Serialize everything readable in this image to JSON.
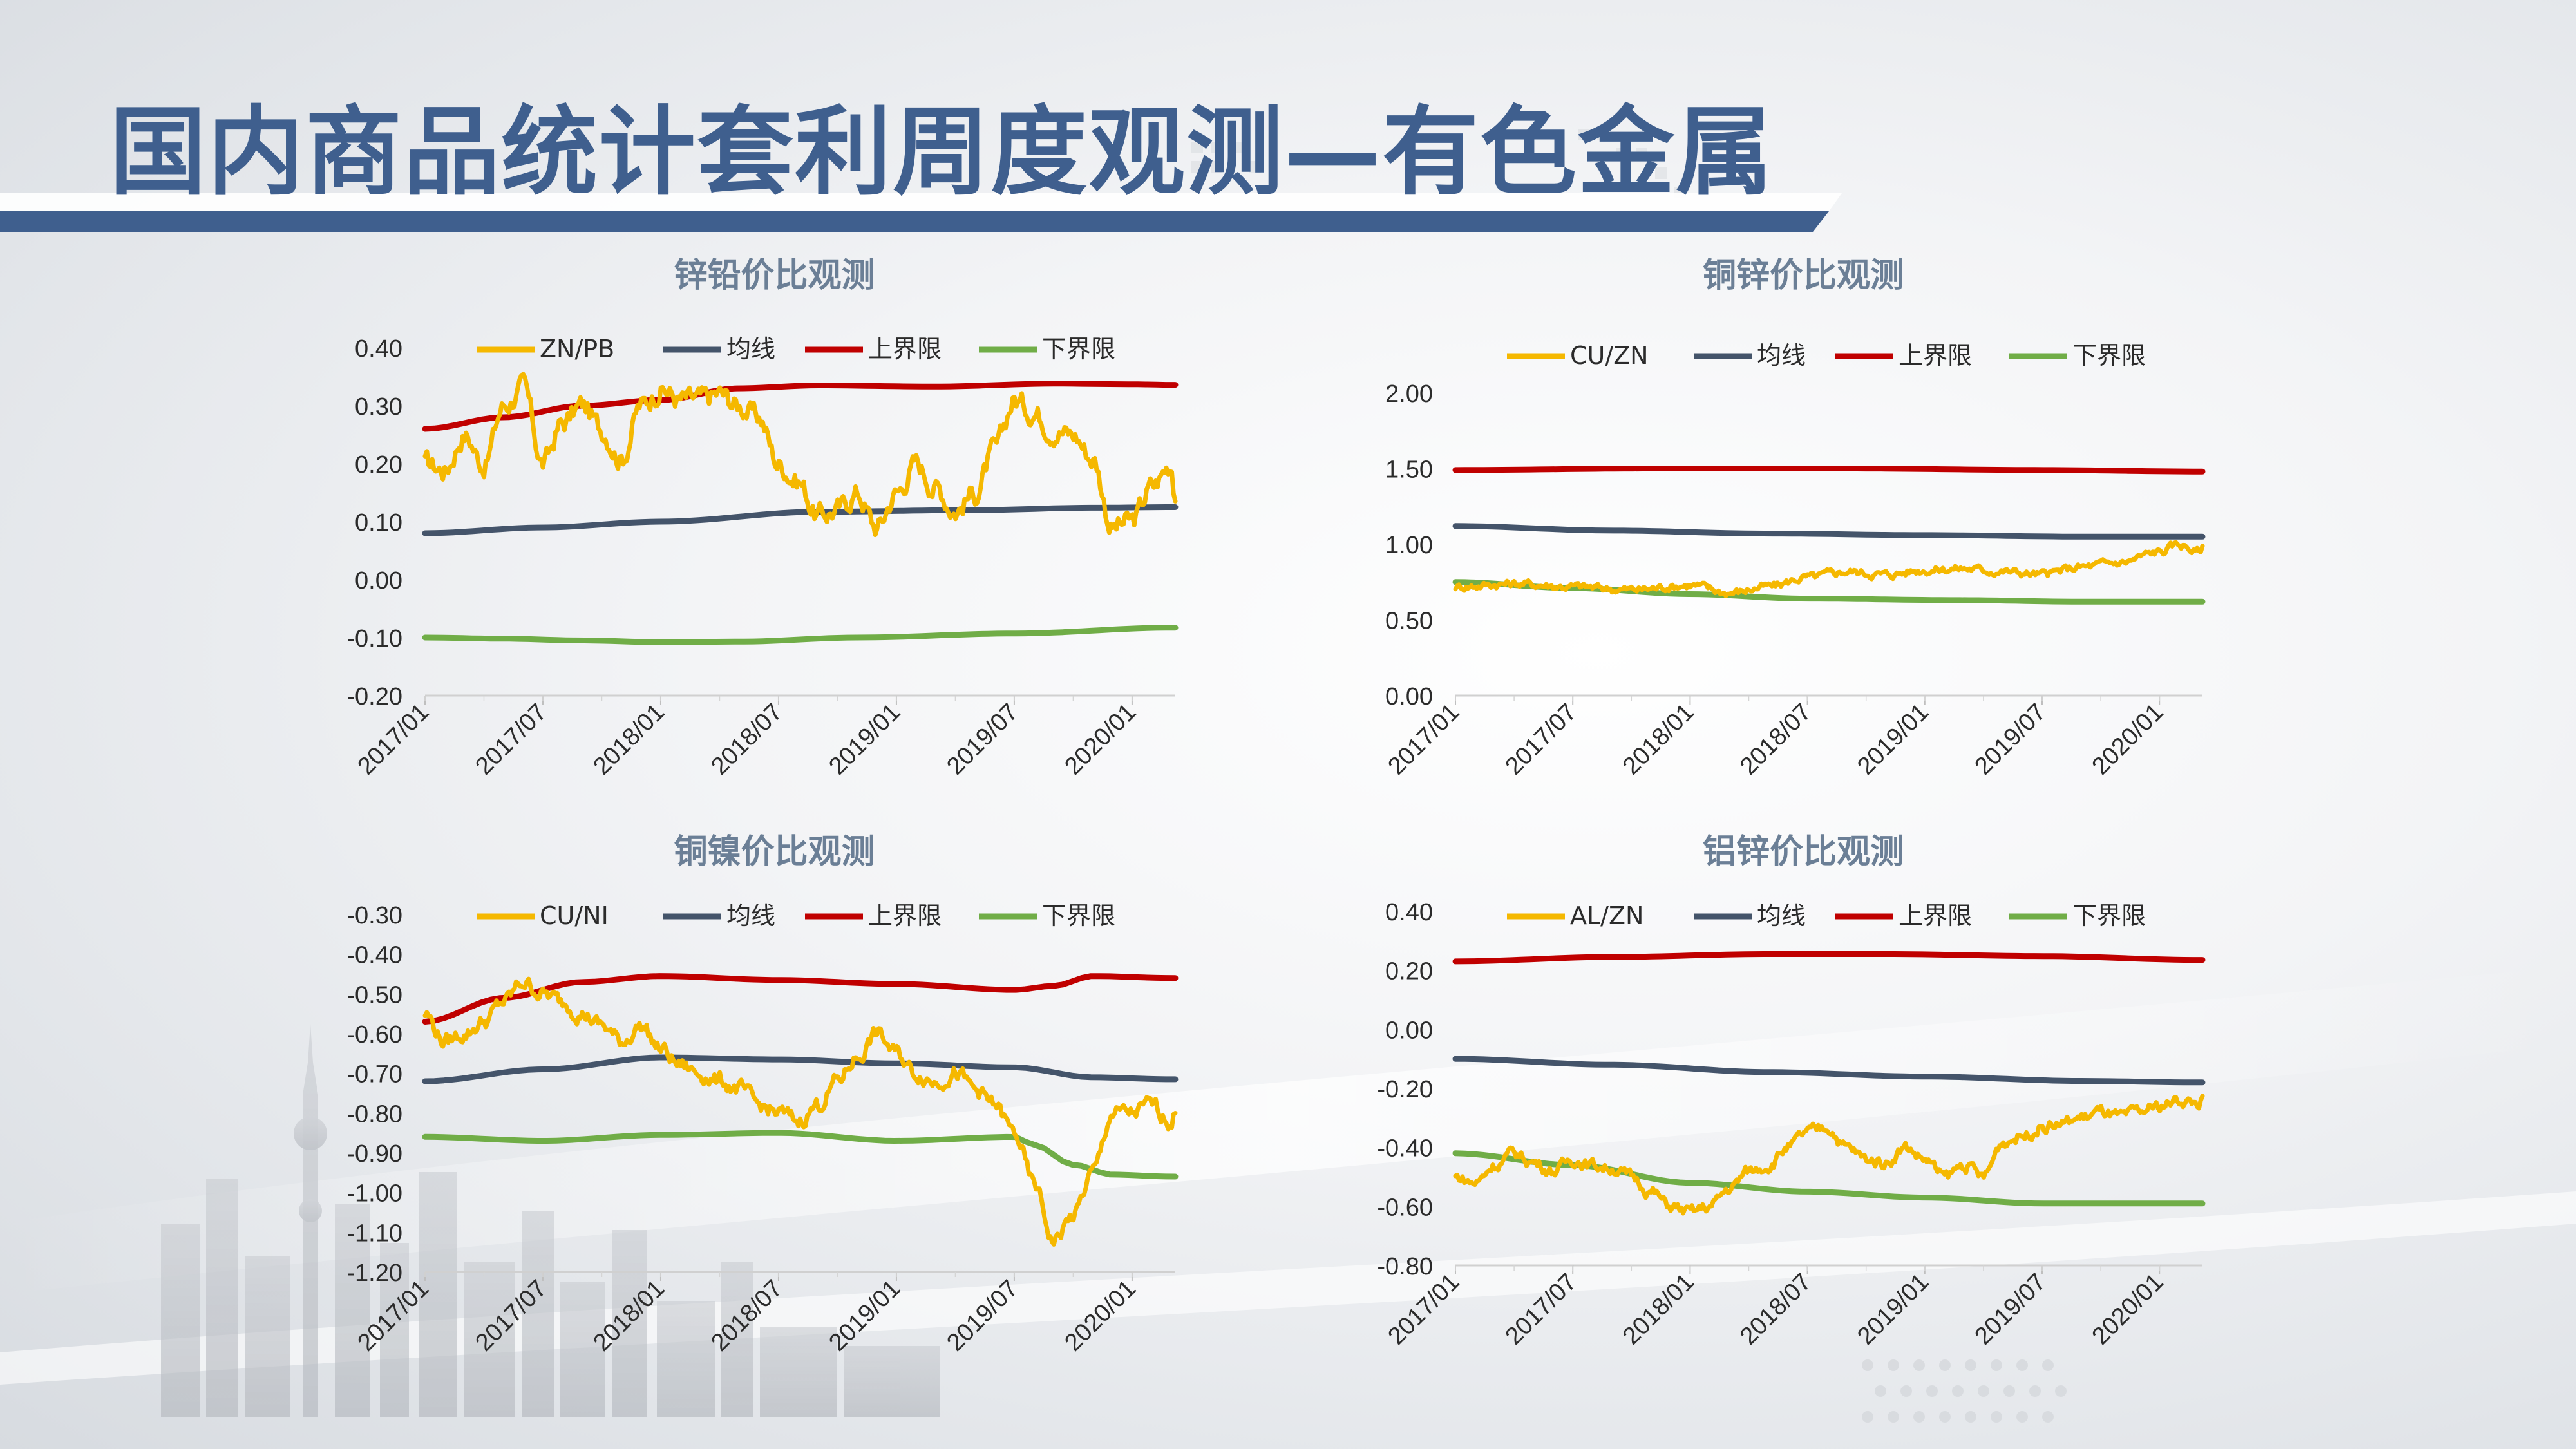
{
  "page": {
    "title": "国内商品统计套利周度观测—有色金属"
  },
  "colors": {
    "title": "#3f5f8e",
    "title_bar": "#3f5f8e",
    "ratio": "#f5b800",
    "mean": "#44546a",
    "upper": "#c00000",
    "lower": "#70ad47"
  },
  "chart_data": [
    {
      "id": "zn-pb",
      "type": "line",
      "title": "锌铅价比观测",
      "x_ticks": [
        "2017/01",
        "2017/07",
        "2018/01",
        "2018/07",
        "2019/01",
        "2019/07",
        "2020/01"
      ],
      "x_range": [
        0,
        38.2
      ],
      "y_ticks": [
        "0.40",
        "0.30",
        "0.20",
        "0.10",
        "0.00",
        "-0.10",
        "-0.20"
      ],
      "ylim": [
        -0.2,
        0.4
      ],
      "grid": false,
      "legend_position": "top",
      "series": [
        {
          "name": "ZN/PB",
          "color_key": "ratio",
          "knots": [
            [
              0,
              0.2
            ],
            [
              1,
              0.19
            ],
            [
              2,
              0.25
            ],
            [
              3,
              0.2
            ],
            [
              4,
              0.3
            ],
            [
              5,
              0.33
            ],
            [
              6,
              0.2
            ],
            [
              7,
              0.27
            ],
            [
              8,
              0.3
            ],
            [
              9,
              0.26
            ],
            [
              10,
              0.21
            ],
            [
              11,
              0.3
            ],
            [
              12,
              0.33
            ],
            [
              13,
              0.31
            ],
            [
              14,
              0.31
            ],
            [
              15,
              0.32
            ],
            [
              16,
              0.3
            ],
            [
              17,
              0.28
            ],
            [
              18,
              0.2
            ],
            [
              19,
              0.17
            ],
            [
              20,
              0.11
            ],
            [
              21,
              0.12
            ],
            [
              22,
              0.15
            ],
            [
              23,
              0.09
            ],
            [
              24,
              0.15
            ],
            [
              25,
              0.2
            ],
            [
              26,
              0.16
            ],
            [
              27,
              0.12
            ],
            [
              28,
              0.15
            ],
            [
              29,
              0.22
            ],
            [
              30,
              0.31
            ],
            [
              31,
              0.29
            ],
            [
              32,
              0.26
            ],
            [
              33,
              0.25
            ],
            [
              34,
              0.21
            ],
            [
              35,
              0.09
            ],
            [
              36,
              0.1
            ],
            [
              37,
              0.16
            ],
            [
              38,
              0.2
            ],
            [
              38.2,
              0.15
            ]
          ],
          "noise": 0.015
        },
        {
          "name": "均线",
          "color_key": "mean",
          "knots": [
            [
              0,
              0.08
            ],
            [
              6,
              0.09
            ],
            [
              12,
              0.1
            ],
            [
              20,
              0.117
            ],
            [
              28,
              0.12
            ],
            [
              34,
              0.124
            ],
            [
              38,
              0.125
            ]
          ],
          "noise": 0
        },
        {
          "name": "上界限",
          "color_key": "upper",
          "knots": [
            [
              0,
              0.26
            ],
            [
              4,
              0.28
            ],
            [
              8,
              0.3
            ],
            [
              12,
              0.31
            ],
            [
              16,
              0.33
            ],
            [
              20,
              0.335
            ],
            [
              26,
              0.333
            ],
            [
              32,
              0.338
            ],
            [
              36,
              0.337
            ],
            [
              38,
              0.336
            ]
          ],
          "noise": 0
        },
        {
          "name": "下界限",
          "color_key": "lower",
          "knots": [
            [
              0,
              -0.1
            ],
            [
              4,
              -0.102
            ],
            [
              8,
              -0.105
            ],
            [
              12,
              -0.108
            ],
            [
              16,
              -0.107
            ],
            [
              22,
              -0.1
            ],
            [
              30,
              -0.093
            ],
            [
              38,
              -0.083
            ]
          ],
          "noise": 0
        }
      ]
    },
    {
      "id": "cu-zn",
      "type": "line",
      "title": "铜锌价比观测",
      "x_ticks": [
        "2017/01",
        "2017/07",
        "2018/01",
        "2018/07",
        "2019/01",
        "2019/07",
        "2020/01"
      ],
      "x_range": [
        0,
        38.2
      ],
      "y_ticks": [
        "2.00",
        "1.50",
        "1.00",
        "0.50",
        "0.00"
      ],
      "ylim": [
        0,
        2.0
      ],
      "grid": false,
      "legend_position": "top",
      "series": [
        {
          "name": "CU/ZN",
          "color_key": "ratio",
          "knots": [
            [
              0,
              0.72
            ],
            [
              3,
              0.74
            ],
            [
              6,
              0.72
            ],
            [
              9,
              0.7
            ],
            [
              12,
              0.73
            ],
            [
              14,
              0.68
            ],
            [
              16,
              0.72
            ],
            [
              18,
              0.78
            ],
            [
              20,
              0.82
            ],
            [
              22,
              0.8
            ],
            [
              24,
              0.83
            ],
            [
              26,
              0.84
            ],
            [
              28,
              0.82
            ],
            [
              30,
              0.8
            ],
            [
              32,
              0.85
            ],
            [
              34,
              0.88
            ],
            [
              36,
              0.95
            ],
            [
              37,
              1.0
            ],
            [
              38,
              0.95
            ],
            [
              38.2,
              0.98
            ]
          ],
          "noise": 0.02
        },
        {
          "name": "均线",
          "color_key": "mean",
          "knots": [
            [
              0,
              1.12
            ],
            [
              8,
              1.09
            ],
            [
              16,
              1.07
            ],
            [
              24,
              1.06
            ],
            [
              32,
              1.05
            ],
            [
              38,
              1.05
            ]
          ],
          "noise": 0
        },
        {
          "name": "上界限",
          "color_key": "upper",
          "knots": [
            [
              0,
              1.49
            ],
            [
              10,
              1.5
            ],
            [
              20,
              1.5
            ],
            [
              30,
              1.49
            ],
            [
              38,
              1.48
            ]
          ],
          "noise": 0
        },
        {
          "name": "下界限",
          "color_key": "lower",
          "knots": [
            [
              0,
              0.75
            ],
            [
              6,
              0.71
            ],
            [
              12,
              0.67
            ],
            [
              18,
              0.64
            ],
            [
              26,
              0.63
            ],
            [
              32,
              0.62
            ],
            [
              38,
              0.62
            ]
          ],
          "noise": 0
        }
      ]
    },
    {
      "id": "cu-ni",
      "type": "line",
      "title": "铜镍价比观测",
      "x_ticks": [
        "2017/01",
        "2017/07",
        "2018/01",
        "2018/07",
        "2019/01",
        "2019/07",
        "2020/01"
      ],
      "x_range": [
        0,
        38.2
      ],
      "y_ticks": [
        "-0.30",
        "-0.40",
        "-0.50",
        "-0.60",
        "-0.70",
        "-0.80",
        "-0.90",
        "-1.00",
        "-1.10",
        "-1.20"
      ],
      "ylim": [
        -1.2,
        -0.3
      ],
      "grid": false,
      "legend_position": "top",
      "series": [
        {
          "name": "CU/NI",
          "color_key": "ratio",
          "knots": [
            [
              0,
              -0.55
            ],
            [
              1,
              -0.62
            ],
            [
              2,
              -0.6
            ],
            [
              3,
              -0.57
            ],
            [
              4,
              -0.52
            ],
            [
              5,
              -0.47
            ],
            [
              6,
              -0.5
            ],
            [
              7,
              -0.52
            ],
            [
              8,
              -0.55
            ],
            [
              9,
              -0.58
            ],
            [
              10,
              -0.62
            ],
            [
              11,
              -0.58
            ],
            [
              12,
              -0.64
            ],
            [
              13,
              -0.68
            ],
            [
              14,
              -0.7
            ],
            [
              15,
              -0.72
            ],
            [
              16,
              -0.74
            ],
            [
              17,
              -0.78
            ],
            [
              18,
              -0.8
            ],
            [
              19,
              -0.82
            ],
            [
              20,
              -0.78
            ],
            [
              21,
              -0.72
            ],
            [
              22,
              -0.66
            ],
            [
              23,
              -0.6
            ],
            [
              24,
              -0.65
            ],
            [
              25,
              -0.7
            ],
            [
              26,
              -0.72
            ],
            [
              27,
              -0.7
            ],
            [
              28,
              -0.74
            ],
            [
              29,
              -0.78
            ],
            [
              30,
              -0.85
            ],
            [
              31,
              -0.98
            ],
            [
              32,
              -1.12
            ],
            [
              33,
              -1.06
            ],
            [
              34,
              -0.95
            ],
            [
              35,
              -0.8
            ],
            [
              36,
              -0.8
            ],
            [
              37,
              -0.78
            ],
            [
              38,
              -0.82
            ],
            [
              38.2,
              -0.8
            ]
          ],
          "noise": 0.015
        },
        {
          "name": "均线",
          "color_key": "mean",
          "knots": [
            [
              0,
              -0.72
            ],
            [
              6,
              -0.69
            ],
            [
              12,
              -0.66
            ],
            [
              18,
              -0.665
            ],
            [
              24,
              -0.675
            ],
            [
              30,
              -0.685
            ],
            [
              34,
              -0.71
            ],
            [
              38,
              -0.715
            ]
          ],
          "noise": 0
        },
        {
          "name": "上界限",
          "color_key": "upper",
          "knots": [
            [
              0,
              -0.57
            ],
            [
              4,
              -0.51
            ],
            [
              8,
              -0.47
            ],
            [
              12,
              -0.455
            ],
            [
              18,
              -0.465
            ],
            [
              24,
              -0.475
            ],
            [
              30,
              -0.49
            ],
            [
              32,
              -0.48
            ],
            [
              34,
              -0.455
            ],
            [
              38,
              -0.46
            ]
          ],
          "noise": 0
        },
        {
          "name": "下界限",
          "color_key": "lower",
          "knots": [
            [
              0,
              -0.86
            ],
            [
              6,
              -0.87
            ],
            [
              12,
              -0.855
            ],
            [
              18,
              -0.85
            ],
            [
              24,
              -0.87
            ],
            [
              30,
              -0.86
            ],
            [
              31,
              -0.88
            ],
            [
              33,
              -0.93
            ],
            [
              35,
              -0.955
            ],
            [
              38,
              -0.96
            ]
          ],
          "noise": 0
        }
      ]
    },
    {
      "id": "al-zn",
      "type": "line",
      "title": "铝锌价比观测",
      "x_ticks": [
        "2017/01",
        "2017/07",
        "2018/01",
        "2018/07",
        "2019/01",
        "2019/07",
        "2020/01"
      ],
      "x_range": [
        0,
        38.2
      ],
      "y_ticks": [
        "0.40",
        "0.20",
        "0.00",
        "-0.20",
        "-0.40",
        "-0.60",
        "-0.80"
      ],
      "ylim": [
        -0.8,
        0.4
      ],
      "grid": false,
      "legend_position": "top",
      "series": [
        {
          "name": "AL/ZN",
          "color_key": "ratio",
          "knots": [
            [
              0,
              -0.5
            ],
            [
              1,
              -0.52
            ],
            [
              2,
              -0.46
            ],
            [
              3,
              -0.42
            ],
            [
              4,
              -0.45
            ],
            [
              5,
              -0.48
            ],
            [
              6,
              -0.44
            ],
            [
              7,
              -0.46
            ],
            [
              8,
              -0.47
            ],
            [
              9,
              -0.5
            ],
            [
              10,
              -0.55
            ],
            [
              11,
              -0.6
            ],
            [
              12,
              -0.62
            ],
            [
              13,
              -0.6
            ],
            [
              14,
              -0.54
            ],
            [
              15,
              -0.48
            ],
            [
              16,
              -0.46
            ],
            [
              17,
              -0.4
            ],
            [
              18,
              -0.35
            ],
            [
              19,
              -0.33
            ],
            [
              20,
              -0.4
            ],
            [
              21,
              -0.44
            ],
            [
              22,
              -0.45
            ],
            [
              23,
              -0.4
            ],
            [
              24,
              -0.44
            ],
            [
              25,
              -0.5
            ],
            [
              26,
              -0.46
            ],
            [
              27,
              -0.5
            ],
            [
              28,
              -0.38
            ],
            [
              29,
              -0.36
            ],
            [
              30,
              -0.33
            ],
            [
              31,
              -0.32
            ],
            [
              32,
              -0.3
            ],
            [
              33,
              -0.28
            ],
            [
              34,
              -0.3
            ],
            [
              35,
              -0.28
            ],
            [
              36,
              -0.26
            ],
            [
              37,
              -0.24
            ],
            [
              38,
              -0.25
            ],
            [
              38.2,
              -0.24
            ]
          ],
          "noise": 0.015
        },
        {
          "name": "均线",
          "color_key": "mean",
          "knots": [
            [
              0,
              -0.1
            ],
            [
              8,
              -0.12
            ],
            [
              16,
              -0.145
            ],
            [
              24,
              -0.16
            ],
            [
              32,
              -0.175
            ],
            [
              38,
              -0.18
            ]
          ],
          "noise": 0
        },
        {
          "name": "上界限",
          "color_key": "upper",
          "knots": [
            [
              0,
              0.23
            ],
            [
              8,
              0.245
            ],
            [
              16,
              0.255
            ],
            [
              22,
              0.255
            ],
            [
              30,
              0.248
            ],
            [
              38,
              0.235
            ]
          ],
          "noise": 0
        },
        {
          "name": "下界限",
          "color_key": "lower",
          "knots": [
            [
              0,
              -0.42
            ],
            [
              6,
              -0.46
            ],
            [
              12,
              -0.52
            ],
            [
              18,
              -0.55
            ],
            [
              24,
              -0.57
            ],
            [
              30,
              -0.59
            ],
            [
              38,
              -0.59
            ]
          ],
          "noise": 0
        }
      ]
    }
  ]
}
